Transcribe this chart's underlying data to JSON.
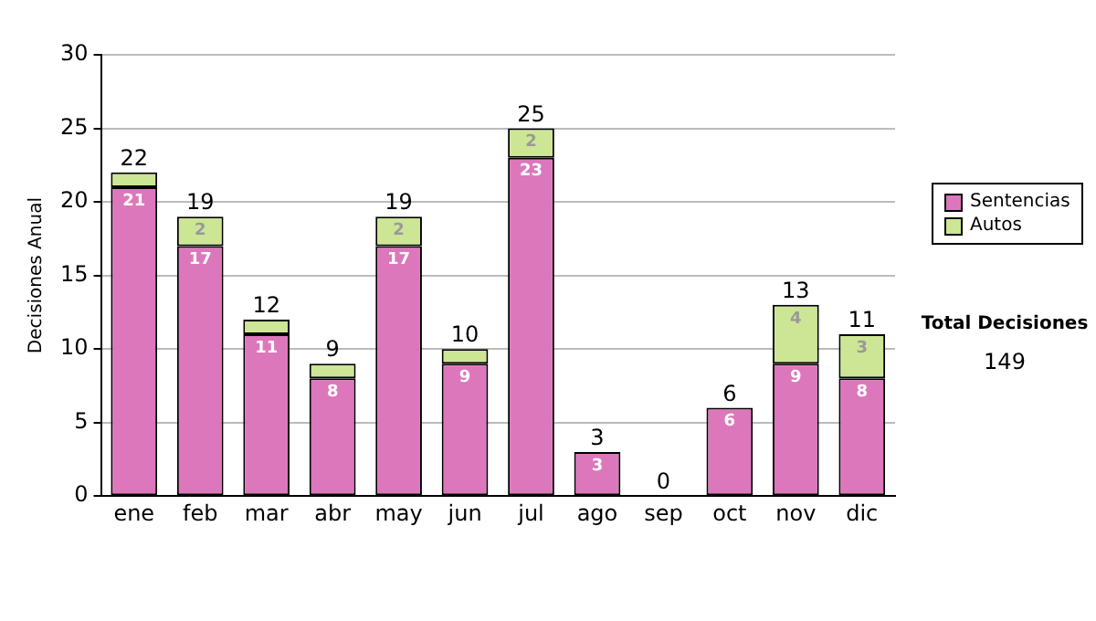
{
  "chart_data": {
    "type": "bar",
    "stacked": true,
    "ylabel": "Decisiones Anual",
    "categories": [
      "ene",
      "feb",
      "mar",
      "abr",
      "may",
      "jun",
      "jul",
      "ago",
      "sep",
      "oct",
      "nov",
      "dic"
    ],
    "series": [
      {
        "name": "Sentencias",
        "color": "#dd77bb",
        "values": [
          21,
          17,
          11,
          8,
          17,
          9,
          23,
          3,
          0,
          6,
          9,
          8
        ],
        "value_labels": [
          "21",
          "17",
          "11",
          "8",
          "17",
          "9",
          "23",
          "3",
          null,
          "6",
          "9",
          "8"
        ]
      },
      {
        "name": "Autos",
        "color": "#cce695",
        "values": [
          1,
          2,
          1,
          1,
          2,
          1,
          2,
          0,
          0,
          0,
          4,
          3
        ],
        "value_labels": [
          null,
          "2",
          null,
          null,
          "2",
          null,
          "2",
          null,
          null,
          null,
          "4",
          "3"
        ]
      }
    ],
    "totals": [
      "22",
      "19",
      "12",
      "9",
      "19",
      "10",
      "25",
      "3",
      "0",
      "6",
      "13",
      "11"
    ],
    "ylim": [
      0,
      30
    ],
    "yticks": [
      0,
      5,
      10,
      15,
      20,
      25,
      30
    ],
    "grid": "y",
    "legend": "right",
    "annotations": [
      "Total Decisiones",
      "149"
    ]
  }
}
